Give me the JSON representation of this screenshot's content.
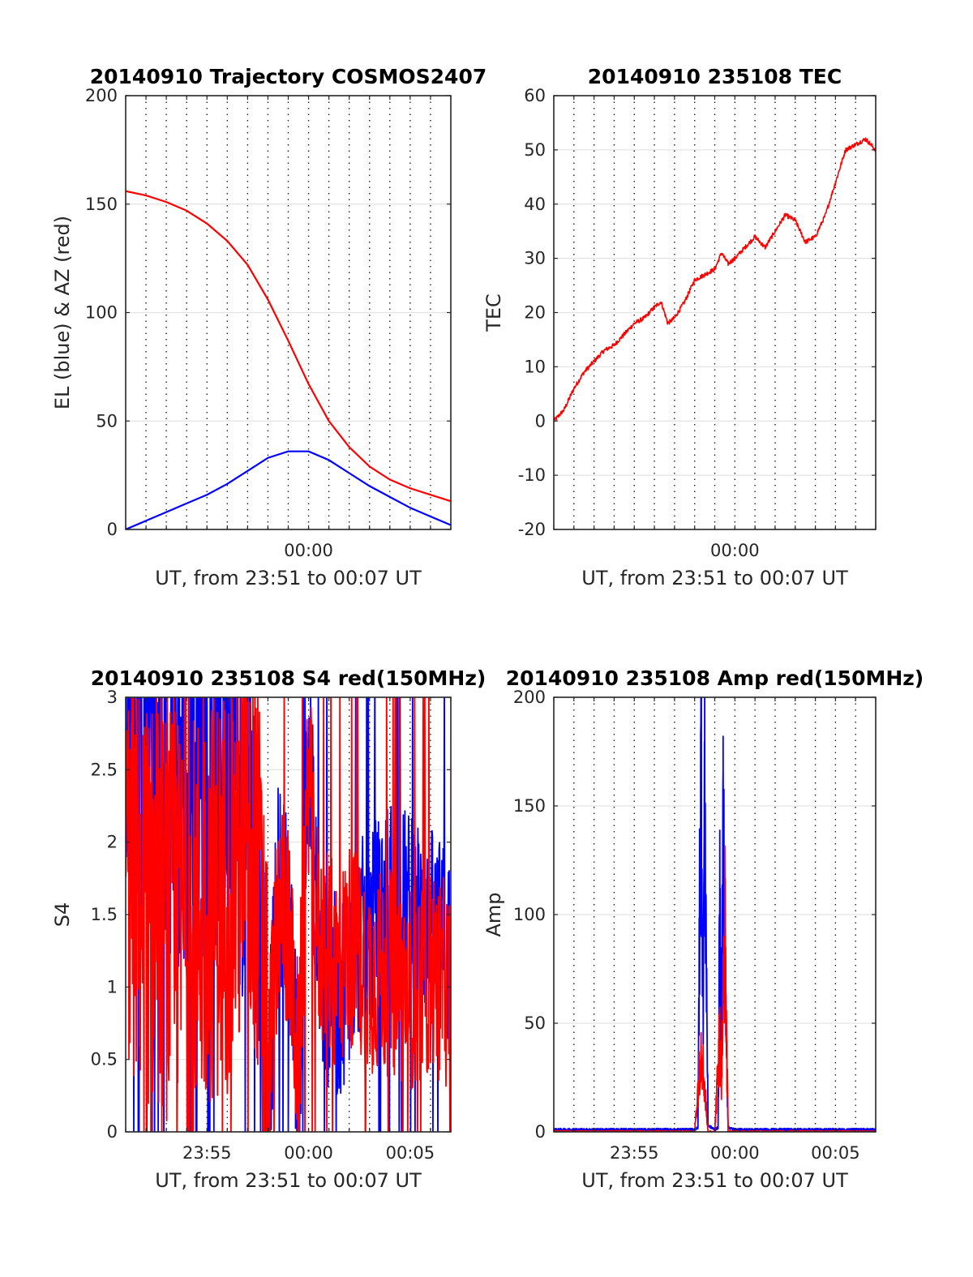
{
  "chart_data": [
    {
      "type": "line",
      "title": "20140910 Trajectory COSMOS2407",
      "xlabel": "UT, from 23:51 to 00:07 UT",
      "ylabel": "EL (blue) & AZ (red)",
      "xlim": [
        "23:51",
        "00:07"
      ],
      "ylim": [
        0,
        200
      ],
      "yticks": [
        0,
        50,
        100,
        150,
        200
      ],
      "xticks": [
        {
          "t": "00:00",
          "label": "00:00"
        }
      ],
      "grid": "dotted vertical every 1 min, solid horizontal",
      "series": [
        {
          "color": "#ff0000",
          "x": [
            "23:51",
            "23:52",
            "23:53",
            "23:54",
            "23:55",
            "23:56",
            "23:57",
            "23:58",
            "23:59",
            "00:00",
            "00:01",
            "00:02",
            "00:03",
            "00:04",
            "00:05",
            "00:06",
            "00:07"
          ],
          "y": [
            156,
            154,
            151,
            147,
            141,
            133,
            122,
            106,
            87,
            67,
            50,
            38,
            29,
            23,
            19,
            16,
            13
          ]
        },
        {
          "color": "#0000ff",
          "x": [
            "23:51",
            "23:52",
            "23:53",
            "23:54",
            "23:55",
            "23:56",
            "23:57",
            "23:58",
            "23:59",
            "00:00",
            "00:01",
            "00:02",
            "00:03",
            "00:04",
            "00:05",
            "00:06",
            "00:07"
          ],
          "y": [
            0,
            4,
            8,
            12,
            16,
            21,
            27,
            33,
            36,
            36,
            32,
            26,
            20,
            15,
            10,
            6,
            2
          ]
        }
      ]
    },
    {
      "type": "line",
      "title": "20140910 235108 TEC",
      "xlabel": "UT, from 23:51 to 00:07 UT",
      "ylabel": "TEC",
      "xlim": [
        "23:51",
        "00:07"
      ],
      "ylim": [
        -20,
        60
      ],
      "yticks": [
        -20,
        -10,
        0,
        10,
        20,
        30,
        40,
        50,
        60
      ],
      "xticks": [
        {
          "t": "00:00",
          "label": "00:00"
        }
      ],
      "grid": "dotted vertical every 1 min, solid horizontal",
      "series": [
        {
          "color": "#ff0000",
          "x": [
            "23:51",
            "23:51:30",
            "23:52",
            "23:52:30",
            "23:53",
            "23:53:30",
            "23:54",
            "23:54:30",
            "23:55",
            "23:55:30",
            "23:56",
            "23:56:20",
            "23:56:40",
            "23:57",
            "23:57:30",
            "23:58",
            "23:58:30",
            "23:59",
            "23:59:20",
            "23:59:40",
            "00:00",
            "00:00:30",
            "00:01",
            "00:01:30",
            "00:02",
            "00:02:30",
            "00:03",
            "00:03:30",
            "00:04",
            "00:04:30",
            "00:05",
            "00:05:30",
            "00:06",
            "00:06:30",
            "00:07"
          ],
          "y": [
            0,
            2,
            6,
            9,
            11,
            13,
            14,
            16,
            18,
            19,
            21,
            22,
            18,
            19,
            22,
            26,
            27,
            28,
            31,
            29,
            30,
            32,
            34,
            32,
            35,
            38,
            37,
            33,
            34,
            38,
            44,
            50,
            51,
            52,
            50
          ]
        }
      ]
    },
    {
      "type": "line",
      "title": "20140910 235108 S4 red(150MHz)",
      "xlabel": "UT, from 23:51 to 00:07 UT",
      "ylabel": "S4",
      "xlim": [
        "23:51",
        "00:07"
      ],
      "ylim": [
        0,
        3
      ],
      "yticks": [
        0,
        0.5,
        1,
        1.5,
        2,
        2.5,
        3
      ],
      "xticks": [
        {
          "t": "23:55",
          "label": "23:55"
        },
        {
          "t": "00:00",
          "label": "00:00"
        },
        {
          "t": "00:05",
          "label": "00:05"
        }
      ],
      "grid": "dotted vertical every 1 min, solid horizontal",
      "series": [
        {
          "color": "#0000ff",
          "x": [
            "23:51",
            "23:52",
            "23:53",
            "23:54",
            "23:55",
            "23:56",
            "23:57",
            "23:57:30",
            "23:58",
            "23:58:30",
            "23:59",
            "23:59:30",
            "00:00",
            "00:00:30",
            "00:01",
            "00:01:30",
            "00:02",
            "00:02:30",
            "00:03",
            "00:04",
            "00:05",
            "00:06",
            "00:07"
          ],
          "y": [
            2.8,
            2.6,
            2.5,
            2.4,
            2.6,
            2.7,
            2.2,
            1.9,
            0.2,
            1.7,
            1.5,
            0.15,
            2.8,
            1.1,
            1.0,
            0.9,
            1.2,
            1.3,
            1.4,
            1.6,
            1.5,
            1.4,
            1.2
          ]
        },
        {
          "color": "#ff0000",
          "x": [
            "23:51",
            "23:52",
            "23:53",
            "23:54",
            "23:55",
            "23:56",
            "23:57",
            "23:57:30",
            "23:58",
            "23:58:30",
            "23:59",
            "23:59:30",
            "00:00",
            "00:00:30",
            "00:01",
            "00:01:30",
            "00:02",
            "00:02:30",
            "00:03",
            "00:04",
            "00:05",
            "00:06",
            "00:07"
          ],
          "y": [
            1.8,
            1.6,
            1.5,
            1.4,
            1.6,
            1.7,
            2.0,
            1.8,
            0.3,
            1.6,
            1.4,
            0.4,
            2.5,
            1.3,
            1.2,
            1.1,
            1.3,
            1.2,
            1.1,
            1.1,
            1.0,
            1.1,
            1.0
          ]
        }
      ]
    },
    {
      "type": "line",
      "title": "20140910 235108 Amp red(150MHz)",
      "xlabel": "UT, from 23:51 to 00:07 UT",
      "ylabel": "Amp",
      "xlim": [
        "23:51",
        "00:07"
      ],
      "ylim": [
        0,
        200
      ],
      "yticks": [
        0,
        50,
        100,
        150,
        200
      ],
      "xticks": [
        {
          "t": "23:55",
          "label": "23:55"
        },
        {
          "t": "00:00",
          "label": "00:00"
        },
        {
          "t": "00:05",
          "label": "00:05"
        }
      ],
      "grid": "dotted vertical every 1 min, solid horizontal",
      "series": [
        {
          "color": "#0000ff",
          "x": [
            "23:51",
            "23:58:00",
            "23:58:10",
            "23:58:15",
            "23:58:20",
            "23:58:25",
            "23:58:30",
            "23:58:40",
            "23:59:00",
            "23:59:10",
            "23:59:15",
            "23:59:20",
            "23:59:25",
            "23:59:30",
            "23:59:40",
            "00:00",
            "00:07"
          ],
          "y": [
            1,
            1,
            2,
            110,
            176,
            60,
            155,
            3,
            1,
            2,
            100,
            40,
            145,
            80,
            2,
            1,
            1
          ]
        },
        {
          "color": "#ff0000",
          "x": [
            "23:51",
            "23:58:00",
            "23:58:15",
            "23:58:20",
            "23:58:30",
            "23:58:40",
            "23:59:00",
            "23:59:15",
            "23:59:20",
            "23:59:30",
            "23:59:40",
            "00:00",
            "00:07"
          ],
          "y": [
            0,
            0,
            30,
            40,
            20,
            0,
            0,
            45,
            25,
            95,
            0,
            0,
            0
          ]
        }
      ]
    }
  ]
}
